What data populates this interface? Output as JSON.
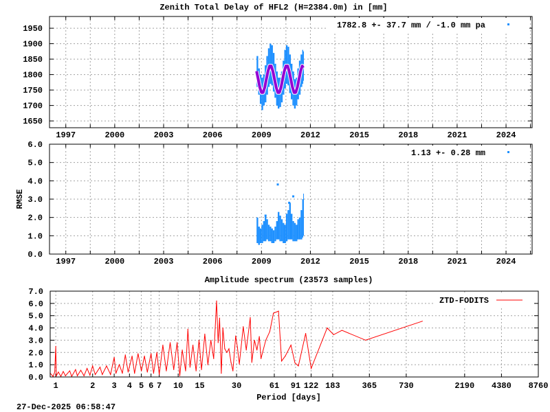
{
  "chart_data": [
    {
      "type": "scatter",
      "title": "Zenith Total Delay of HFL2 (H=2384.0m) in [mm]",
      "xlabel": "",
      "ylabel": "",
      "xlim": [
        1996.0,
        2025.6
      ],
      "ylim": [
        1628,
        1988
      ],
      "grid": true,
      "legend_position": "top-right",
      "legend": "1782.8 +-  37.7 mm / -1.0 mm pa",
      "x_tick_labels": [
        "1997",
        "2000",
        "2003",
        "2006",
        "2009",
        "2012",
        "2015",
        "2018",
        "2021",
        "2024"
      ],
      "y_tick_labels": [
        "1650",
        "1700",
        "1750",
        "1800",
        "1850",
        "1900",
        "1950"
      ],
      "colors": {
        "observations": "#1e90ff",
        "model": "#9400d3"
      },
      "observations_envelope": [
        [
          2008.7,
          1760,
          1860
        ],
        [
          2008.8,
          1735,
          1820
        ],
        [
          2008.9,
          1705,
          1800
        ],
        [
          2009.0,
          1685,
          1790
        ],
        [
          2009.1,
          1700,
          1800
        ],
        [
          2009.2,
          1710,
          1830
        ],
        [
          2009.3,
          1735,
          1860
        ],
        [
          2009.4,
          1760,
          1885
        ],
        [
          2009.5,
          1770,
          1900
        ],
        [
          2009.6,
          1765,
          1895
        ],
        [
          2009.7,
          1745,
          1870
        ],
        [
          2009.8,
          1725,
          1835
        ],
        [
          2009.9,
          1700,
          1810
        ],
        [
          2010.0,
          1690,
          1790
        ],
        [
          2010.1,
          1695,
          1790
        ],
        [
          2010.2,
          1710,
          1810
        ],
        [
          2010.3,
          1735,
          1845
        ],
        [
          2010.4,
          1755,
          1880
        ],
        [
          2010.5,
          1770,
          1895
        ],
        [
          2010.6,
          1765,
          1890
        ],
        [
          2010.7,
          1740,
          1865
        ],
        [
          2010.8,
          1720,
          1835
        ],
        [
          2010.9,
          1700,
          1810
        ],
        [
          2011.0,
          1690,
          1785
        ],
        [
          2011.1,
          1700,
          1790
        ],
        [
          2011.2,
          1720,
          1820
        ],
        [
          2011.3,
          1735,
          1845
        ],
        [
          2011.4,
          1760,
          1865
        ],
        [
          2011.5,
          1770,
          1880
        ],
        [
          2011.56,
          1780,
          1875
        ]
      ],
      "model": [
        [
          2008.7,
          1811
        ],
        [
          2008.8,
          1785
        ],
        [
          2008.9,
          1759
        ],
        [
          2009.0,
          1742
        ],
        [
          2009.1,
          1742
        ],
        [
          2009.2,
          1759
        ],
        [
          2009.3,
          1785
        ],
        [
          2009.4,
          1811
        ],
        [
          2009.5,
          1828
        ],
        [
          2009.6,
          1828
        ],
        [
          2009.7,
          1811
        ],
        [
          2009.8,
          1785
        ],
        [
          2009.9,
          1759
        ],
        [
          2010.0,
          1742
        ],
        [
          2010.1,
          1742
        ],
        [
          2010.2,
          1759
        ],
        [
          2010.3,
          1785
        ],
        [
          2010.4,
          1811
        ],
        [
          2010.5,
          1828
        ],
        [
          2010.6,
          1828
        ],
        [
          2010.7,
          1811
        ],
        [
          2010.8,
          1785
        ],
        [
          2010.9,
          1759
        ],
        [
          2011.0,
          1742
        ],
        [
          2011.1,
          1742
        ],
        [
          2011.2,
          1759
        ],
        [
          2011.3,
          1785
        ],
        [
          2011.4,
          1811
        ],
        [
          2011.5,
          1828
        ],
        [
          2011.56,
          1822
        ]
      ]
    },
    {
      "type": "scatter",
      "title": "",
      "xlabel": "",
      "ylabel": "RMSE",
      "xlim": [
        1996.0,
        2025.6
      ],
      "ylim": [
        0,
        6
      ],
      "grid": true,
      "legend_position": "top-right",
      "legend": "1.13 +-  0.28 mm",
      "x_tick_labels": [
        "1997",
        "2000",
        "2003",
        "2006",
        "2009",
        "2012",
        "2015",
        "2018",
        "2021",
        "2024"
      ],
      "y_tick_labels": [
        "0.0",
        "1.0",
        "2.0",
        "3.0",
        "4.0",
        "5.0",
        "6.0"
      ],
      "colors": {
        "observations": "#1e90ff"
      },
      "observations_envelope": [
        [
          2008.7,
          0.6,
          2.0
        ],
        [
          2008.8,
          0.5,
          1.5
        ],
        [
          2008.9,
          0.6,
          1.4
        ],
        [
          2009.0,
          0.6,
          1.6
        ],
        [
          2009.1,
          0.7,
          1.8
        ],
        [
          2009.2,
          0.7,
          2.1
        ],
        [
          2009.3,
          0.8,
          1.9
        ],
        [
          2009.4,
          0.7,
          1.6
        ],
        [
          2009.5,
          0.7,
          1.5
        ],
        [
          2009.6,
          0.6,
          1.4
        ],
        [
          2009.7,
          0.6,
          1.3
        ],
        [
          2009.8,
          0.7,
          1.5
        ],
        [
          2009.9,
          0.8,
          1.8
        ],
        [
          2010.0,
          0.8,
          2.3
        ],
        [
          2010.1,
          0.7,
          2.1
        ],
        [
          2010.2,
          0.7,
          1.9
        ],
        [
          2010.3,
          0.6,
          1.7
        ],
        [
          2010.4,
          0.6,
          1.6
        ],
        [
          2010.5,
          0.7,
          2.2
        ],
        [
          2010.6,
          0.8,
          2.4
        ],
        [
          2010.7,
          0.8,
          2.8
        ],
        [
          2010.8,
          0.8,
          2.2
        ],
        [
          2010.9,
          0.7,
          1.8
        ],
        [
          2011.0,
          0.7,
          1.7
        ],
        [
          2011.1,
          0.7,
          1.6
        ],
        [
          2011.2,
          0.8,
          1.9
        ],
        [
          2011.3,
          0.8,
          2.0
        ],
        [
          2011.4,
          0.8,
          2.4
        ],
        [
          2011.5,
          0.9,
          3.0
        ],
        [
          2011.56,
          1.0,
          3.3
        ]
      ],
      "outliers": [
        [
          2010.0,
          3.8
        ],
        [
          2010.95,
          3.15
        ],
        [
          2010.7,
          2.8
        ],
        [
          2009.25,
          2.1
        ]
      ]
    },
    {
      "type": "line",
      "title": "Amplitude spectrum (23573 samples)",
      "xlabel": "Period [days]",
      "ylabel": "",
      "x_scale": "log",
      "xlim": [
        0.9,
        8760
      ],
      "ylim": [
        0,
        7
      ],
      "grid": true,
      "legend_position": "top-right",
      "series": [
        {
          "name": "ZTD-FODITS",
          "color": "#ff0000",
          "points": [
            [
              0.9,
              0.3
            ],
            [
              0.95,
              0.05
            ],
            [
              0.98,
              0.4
            ],
            [
              1.0,
              2.5
            ],
            [
              1.01,
              0.1
            ],
            [
              1.05,
              0.4
            ],
            [
              1.1,
              0.05
            ],
            [
              1.15,
              0.45
            ],
            [
              1.2,
              0.1
            ],
            [
              1.3,
              0.5
            ],
            [
              1.35,
              0.05
            ],
            [
              1.45,
              0.6
            ],
            [
              1.5,
              0.1
            ],
            [
              1.6,
              0.55
            ],
            [
              1.7,
              0.1
            ],
            [
              1.8,
              0.7
            ],
            [
              1.9,
              0.15
            ],
            [
              2.0,
              0.9
            ],
            [
              2.1,
              0.2
            ],
            [
              2.3,
              0.8
            ],
            [
              2.4,
              0.2
            ],
            [
              2.6,
              0.9
            ],
            [
              2.8,
              0.2
            ],
            [
              3.0,
              1.6
            ],
            [
              3.1,
              0.3
            ],
            [
              3.3,
              1.0
            ],
            [
              3.5,
              0.3
            ],
            [
              3.7,
              1.8
            ],
            [
              3.9,
              0.4
            ],
            [
              4.2,
              1.7
            ],
            [
              4.4,
              0.3
            ],
            [
              4.7,
              1.9
            ],
            [
              5.0,
              0.5
            ],
            [
              5.3,
              1.7
            ],
            [
              5.6,
              0.4
            ],
            [
              6.0,
              1.9
            ],
            [
              6.3,
              0.3
            ],
            [
              6.7,
              2.0
            ],
            [
              7.0,
              0.2
            ],
            [
              7.5,
              2.6
            ],
            [
              8.0,
              0.5
            ],
            [
              8.6,
              2.8
            ],
            [
              9.2,
              0.6
            ],
            [
              9.8,
              2.8
            ],
            [
              10.3,
              0.1
            ],
            [
              10.8,
              2.2
            ],
            [
              11.5,
              0.5
            ],
            [
              12.0,
              3.9
            ],
            [
              12.5,
              0.8
            ],
            [
              13.2,
              2.6
            ],
            [
              14.0,
              0.5
            ],
            [
              14.8,
              3.0
            ],
            [
              15.5,
              0.6
            ],
            [
              16.5,
              3.5
            ],
            [
              17.5,
              1.0
            ],
            [
              18.5,
              3.0
            ],
            [
              19.5,
              1.5
            ],
            [
              20.6,
              6.2
            ],
            [
              21.2,
              2.8
            ],
            [
              21.8,
              4.8
            ],
            [
              22.5,
              0.3
            ],
            [
              23.2,
              4.0
            ],
            [
              24,
              2.3
            ],
            [
              25,
              2.0
            ],
            [
              26,
              2.3
            ],
            [
              27,
              1.2
            ],
            [
              28,
              0.5
            ],
            [
              29.5,
              3.35
            ],
            [
              30.5,
              2.4
            ],
            [
              31.6,
              1.05
            ],
            [
              34,
              4.1
            ],
            [
              36,
              2.2
            ],
            [
              38.8,
              4.85
            ],
            [
              40,
              1.2
            ],
            [
              42,
              3.0
            ],
            [
              44,
              2.2
            ],
            [
              46,
              3.3
            ],
            [
              47.5,
              1.5
            ],
            [
              52,
              3.0
            ],
            [
              56,
              3.7
            ],
            [
              60,
              5.2
            ],
            [
              66,
              5.37
            ],
            [
              70,
              1.3
            ],
            [
              75,
              1.7
            ],
            [
              83.5,
              2.6
            ],
            [
              90,
              1.15
            ],
            [
              96,
              0.9
            ],
            [
              110,
              3.55
            ],
            [
              122,
              0.7
            ],
            [
              165,
              4.0
            ],
            [
              186,
              3.45
            ],
            [
              218,
              3.8
            ],
            [
              340,
              3.0
            ],
            [
              987,
              4.55
            ]
          ]
        }
      ],
      "x_ticks": [
        1,
        2,
        3,
        4,
        5,
        6,
        7,
        10,
        15,
        30,
        61,
        91,
        122,
        183,
        365,
        730,
        2190,
        4380,
        8760
      ],
      "y_tick_labels": [
        "0.0",
        "1.0",
        "2.0",
        "3.0",
        "4.0",
        "5.0",
        "6.0",
        "7.0"
      ]
    }
  ],
  "footer": {
    "timestamp": "27-Dec-2025 06:58:47"
  }
}
